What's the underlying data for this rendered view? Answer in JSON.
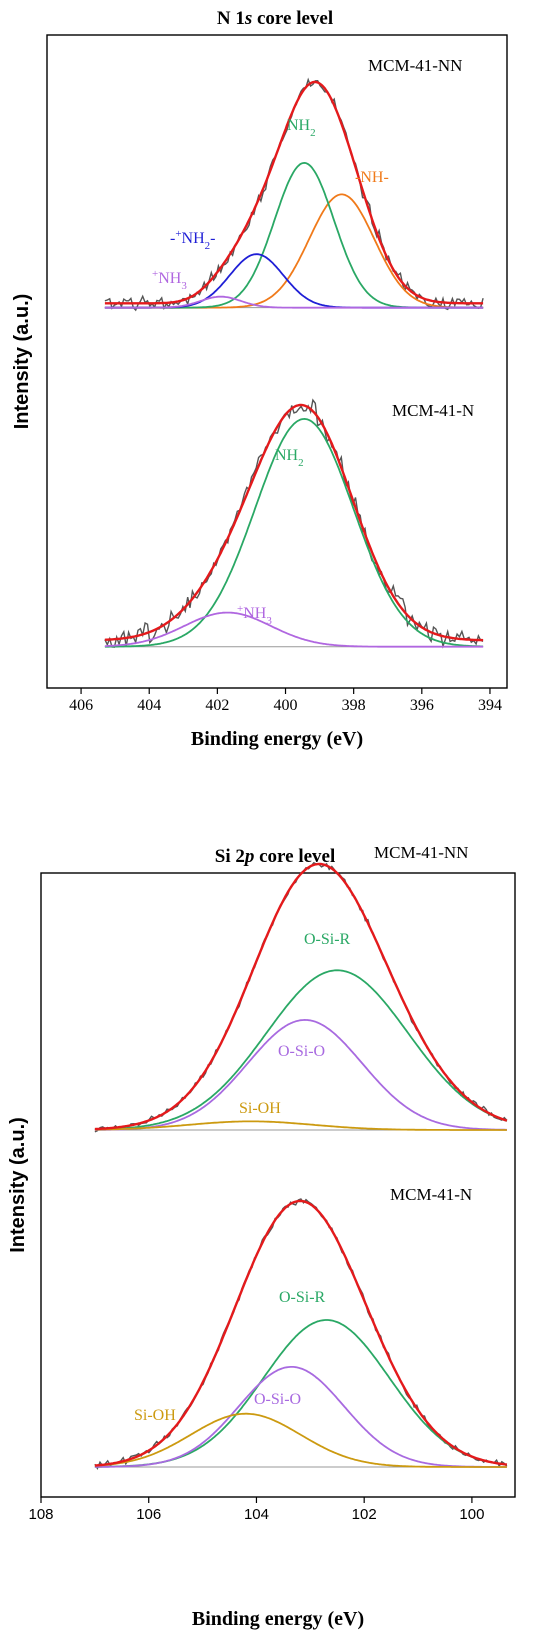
{
  "colors": {
    "envelope": "#e41a1c",
    "raw": "#555555",
    "nh2": "#2aa865",
    "nh": "#f07a1a",
    "nh2_plus": "#1f1fd6",
    "nh3_plus": "#b067e0",
    "si_o_si_r": "#2aa865",
    "si_o_si_o": "#a86ae0",
    "si_oh": "#cc9a10",
    "baseline": "#999999"
  },
  "chart_data": [
    {
      "type": "line",
      "title_parts": [
        "N 1",
        "s",
        " core level"
      ],
      "xlabel": "Binding energy (eV)",
      "ylabel": "Intensity (a.u.)",
      "xlim": [
        407,
        393.5
      ],
      "xticks": [
        406,
        404,
        402,
        400,
        398,
        396,
        394
      ],
      "x_reversed": true,
      "y_ticks": "none",
      "panels": [
        {
          "sample": "MCM-41-NN",
          "baseline": 0.055,
          "components": [
            {
              "key": "nh",
              "label_main": "-NH-",
              "center": 398.35,
              "fwhm": 2.25,
              "height": 0.72
            },
            {
              "key": "nh2",
              "label_main": "NH",
              "label_sub": "2",
              "center": 399.45,
              "fwhm": 2.05,
              "height": 0.92
            },
            {
              "key": "nh2_plus",
              "label_main": "-",
              "label_sup": "+",
              "label_main2": "NH",
              "label_sub": "2",
              "label_tail": "-",
              "center": 400.85,
              "fwhm": 1.85,
              "height": 0.34
            },
            {
              "key": "nh3_plus",
              "label_sup": "+",
              "label_main": "NH",
              "label_sub": "3",
              "center": 401.9,
              "fwhm": 1.4,
              "height": 0.07
            }
          ],
          "envelope_peak_eV": 399.1
        },
        {
          "sample": "MCM-41-N",
          "baseline": 0.055,
          "components": [
            {
              "key": "nh2",
              "label_main": "NH",
              "label_sub": "2",
              "center": 399.45,
              "fwhm": 3.4,
              "height": 1.0
            },
            {
              "key": "nh3_plus",
              "label_sup": "+",
              "label_main": "NH",
              "label_sub": "3",
              "center": 401.7,
              "fwhm": 3.0,
              "height": 0.15
            }
          ],
          "envelope_peak_eV": 399.5
        }
      ]
    },
    {
      "type": "line",
      "title_parts": [
        "Si 2",
        "p",
        " core level"
      ],
      "xlabel": "Binding energy (eV)",
      "ylabel": "Intensity (a.u.)",
      "xlim": [
        108,
        99.2
      ],
      "xticks": [
        108,
        106,
        104,
        102,
        100
      ],
      "x_reversed": true,
      "y_ticks": "none",
      "panels": [
        {
          "sample": "MCM-41-NN",
          "baseline": 0.0,
          "components": [
            {
              "key": "si_o_si_r",
              "label_main": "O-Si-R",
              "center": 102.5,
              "fwhm": 3.1,
              "height": 0.74
            },
            {
              "key": "si_o_si_o",
              "label_main": "O-Si-O",
              "center": 103.1,
              "fwhm": 2.5,
              "height": 0.51
            },
            {
              "key": "si_oh",
              "label_main": "Si-OH",
              "center": 104.1,
              "fwhm": 2.7,
              "height": 0.04
            }
          ],
          "envelope_peak_eV": 102.8
        },
        {
          "sample": "MCM-41-N",
          "baseline": 0.0,
          "components": [
            {
              "key": "si_o_si_r",
              "label_main": "O-Si-R",
              "center": 102.7,
              "fwhm": 2.75,
              "height": 0.69
            },
            {
              "key": "si_o_si_o",
              "label_main": "O-Si-O",
              "center": 103.35,
              "fwhm": 2.3,
              "height": 0.47
            },
            {
              "key": "si_oh",
              "label_main": "Si-OH",
              "center": 104.2,
              "fwhm": 2.4,
              "height": 0.25
            }
          ],
          "envelope_peak_eV": 103.1
        }
      ]
    }
  ]
}
